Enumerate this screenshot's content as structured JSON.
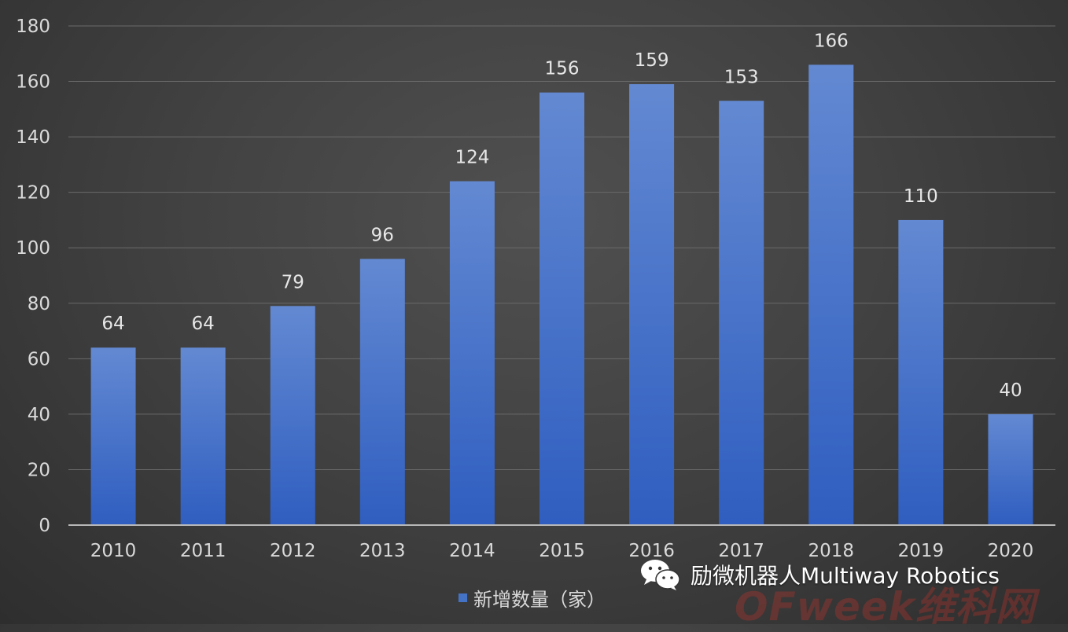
{
  "chart_data": {
    "type": "bar",
    "categories": [
      "2010",
      "2011",
      "2012",
      "2013",
      "2014",
      "2015",
      "2016",
      "2017",
      "2018",
      "2019",
      "2020"
    ],
    "series": [
      {
        "name": "新增数量（家）",
        "values": [
          64,
          64,
          79,
          96,
          124,
          156,
          159,
          153,
          166,
          110,
          40
        ],
        "color": "#4472c4"
      }
    ],
    "ylim": [
      0,
      180
    ],
    "yticks": [
      0,
      20,
      40,
      60,
      80,
      100,
      120,
      140,
      160,
      180
    ],
    "grid": true,
    "legend_position": "bottom",
    "data_labels": true
  },
  "legend": {
    "label": "新增数量（家）"
  },
  "watermark": {
    "text": "励微机器人Multiway Robotics",
    "icon": "wechat-icon"
  },
  "ofweek_mark": {
    "text": "OFweek维科网"
  },
  "colors": {
    "bar": "#4472c4",
    "bar_light": "#5a86d4",
    "bar_dark": "#2d5bb5"
  }
}
